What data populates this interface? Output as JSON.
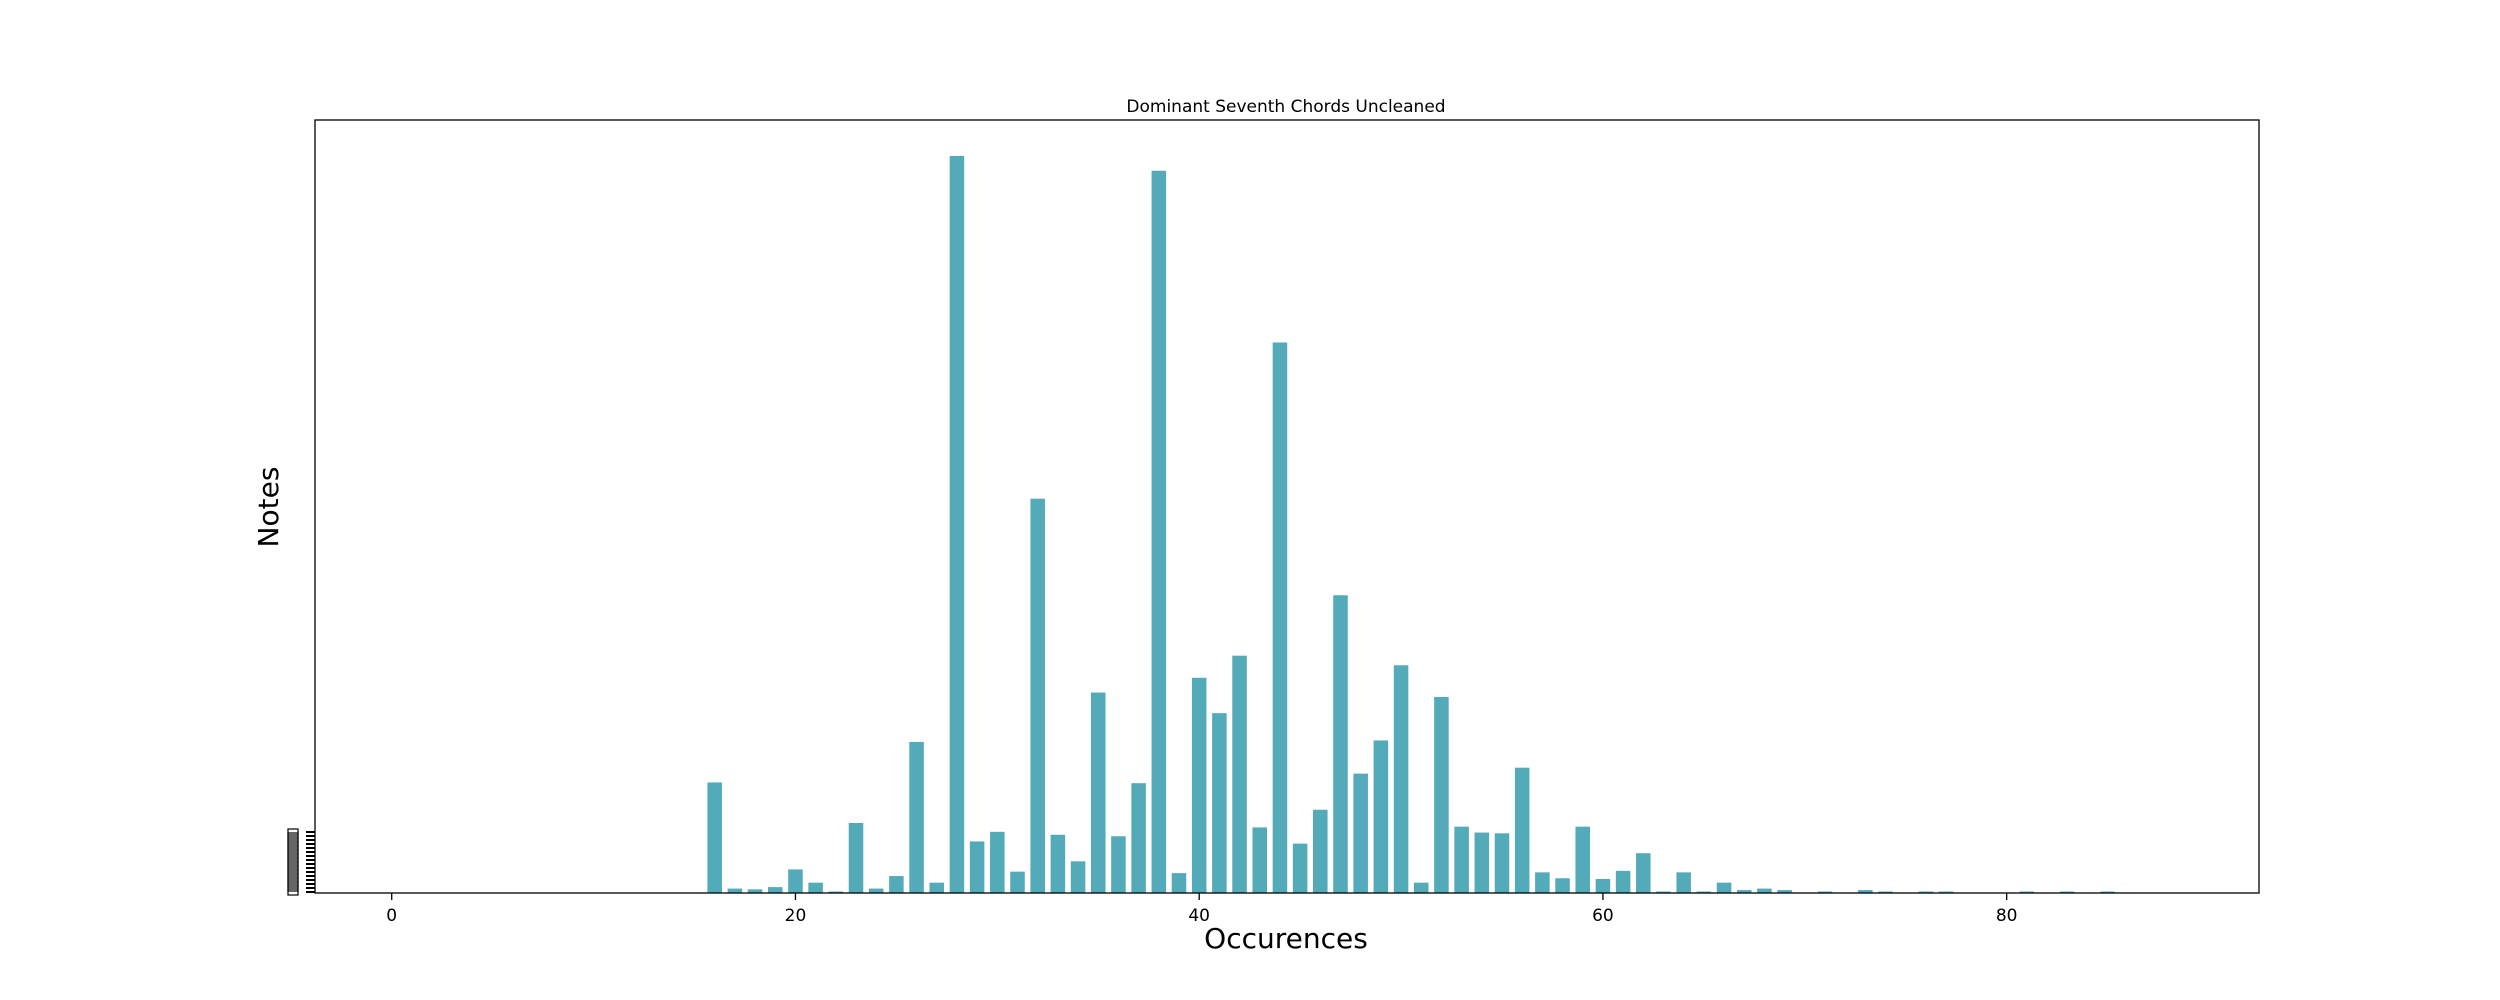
{
  "chart_data": {
    "type": "bar",
    "title": "Dominant Seventh Chords Uncleaned",
    "xlabel": "Occurences",
    "ylabel": "Notes",
    "xlim": [
      -3.8,
      92.5
    ],
    "ylim": [
      0,
      1000
    ],
    "x_ticks": [
      0,
      20,
      40,
      60,
      80
    ],
    "bar_color": "#53abb9",
    "grid": false,
    "x": [
      16,
      17,
      18,
      19,
      20,
      21,
      22,
      23,
      24,
      25,
      26,
      27,
      28,
      29,
      30,
      31,
      32,
      33,
      34,
      35,
      36,
      37,
      38,
      39,
      40,
      41,
      42,
      43,
      44,
      45,
      46,
      47,
      48,
      49,
      50,
      51,
      52,
      53,
      54,
      55,
      56,
      57,
      58,
      59,
      60,
      61,
      62,
      63,
      64,
      65,
      66,
      67,
      68,
      69,
      71,
      73,
      74,
      76,
      77,
      81,
      83,
      85
    ],
    "values": [
      150,
      6,
      5,
      8,
      32,
      14,
      2,
      95,
      6,
      23,
      205,
      14,
      1000,
      70,
      83,
      29,
      535,
      79,
      43,
      272,
      77,
      149,
      980,
      27,
      292,
      244,
      322,
      89,
      747,
      67,
      113,
      404,
      162,
      207,
      309,
      14,
      266,
      90,
      82,
      81,
      170,
      28,
      20,
      90,
      19,
      30,
      54,
      2,
      28,
      2,
      14,
      4,
      6,
      4,
      2,
      4,
      2,
      2,
      2,
      2,
      2,
      2
    ]
  }
}
